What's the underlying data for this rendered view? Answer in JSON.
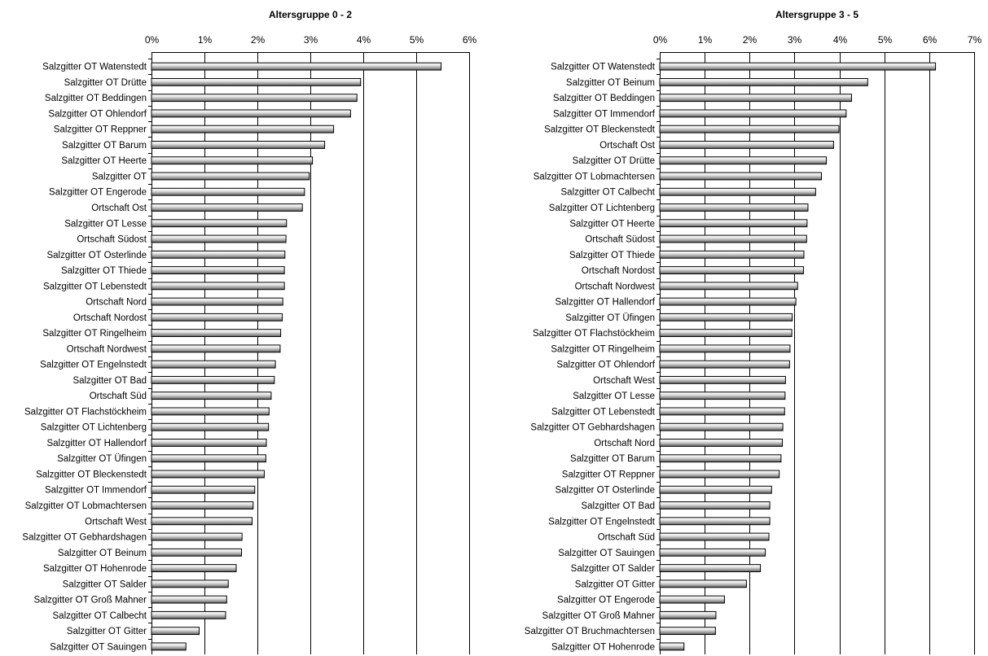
{
  "chart_data": [
    {
      "type": "bar",
      "orientation": "horizontal",
      "title": "Altersgruppe 0 - 2",
      "xlim": [
        0,
        6
      ],
      "x_ticks": [
        "0%",
        "1%",
        "2%",
        "3%",
        "4%",
        "5%",
        "6%"
      ],
      "grid": true,
      "categories": [
        "Salzgitter OT Watenstedt",
        "Salzgitter OT Drütte",
        "Salzgitter OT Beddingen",
        "Salzgitter OT Ohlendorf",
        "Salzgitter OT Reppner",
        "Salzgitter OT Barum",
        "Salzgitter OT Heerte",
        "Salzgitter OT",
        "Salzgitter OT Engerode",
        "Ortschaft Ost",
        "Salzgitter OT Lesse",
        "Ortschaft Südost",
        "Salzgitter OT Osterlinde",
        "Salzgitter OT Thiede",
        "Salzgitter OT Lebenstedt",
        "Ortschaft Nord",
        "Ortschaft Nordost",
        "Salzgitter OT Ringelheim",
        "Ortschaft Nordwest",
        "Salzgitter OT Engelnstedt",
        "Salzgitter OT Bad",
        "Ortschaft Süd",
        "Salzgitter OT Flachstöckheim",
        "Salzgitter OT Lichtenberg",
        "Salzgitter OT Hallendorf",
        "Salzgitter OT Üfingen",
        "Salzgitter OT Bleckenstedt",
        "Salzgitter OT Immendorf",
        "Salzgitter OT Lobmachtersen",
        "Ortschaft West",
        "Salzgitter OT Gebhardshagen",
        "Salzgitter OT Beinum",
        "Salzgitter OT Hohenrode",
        "Salzgitter OT Salder",
        "Salzgitter OT Groß Mahner",
        "Salzgitter OT Calbecht",
        "Salzgitter OT Gitter",
        "Salzgitter OT Sauingen"
      ],
      "values": [
        5.47,
        3.95,
        3.88,
        3.76,
        3.44,
        3.27,
        3.04,
        2.98,
        2.89,
        2.85,
        2.55,
        2.54,
        2.52,
        2.51,
        2.51,
        2.48,
        2.47,
        2.44,
        2.43,
        2.34,
        2.32,
        2.26,
        2.22,
        2.21,
        2.17,
        2.16,
        2.13,
        1.95,
        1.92,
        1.9,
        1.71,
        1.7,
        1.6,
        1.45,
        1.42,
        1.4,
        0.9,
        0.65
      ]
    },
    {
      "type": "bar",
      "orientation": "horizontal",
      "title": "Altersgruppe 3 - 5",
      "xlim": [
        0,
        7
      ],
      "x_ticks": [
        "0%",
        "1%",
        "2%",
        "3%",
        "4%",
        "5%",
        "6%",
        "7%"
      ],
      "grid": true,
      "categories": [
        "Salzgitter OT Watenstedt",
        "Salzgitter OT Beinum",
        "Salzgitter OT Beddingen",
        "Salzgitter OT Immendorf",
        "Salzgitter OT Bleckenstedt",
        "Ortschaft Ost",
        "Salzgitter OT Drütte",
        "Salzgitter OT Lobmachtersen",
        "Salzgitter OT Calbecht",
        "Salzgitter OT Lichtenberg",
        "Salzgitter OT Heerte",
        "Ortschaft Südost",
        "Salzgitter OT Thiede",
        "Ortschaft Nordost",
        "Ortschaft Nordwest",
        "Salzgitter OT Hallendorf",
        "Salzgitter OT Üfingen",
        "Salzgitter OT Flachstöckheim",
        "Salzgitter OT Ringelheim",
        "Salzgitter OT Ohlendorf",
        "Ortschaft West",
        "Salzgitter OT Lesse",
        "Salzgitter OT Lebenstedt",
        "Salzgitter OT Gebhardshagen",
        "Ortschaft Nord",
        "Salzgitter OT Barum",
        "Salzgitter OT Reppner",
        "Salzgitter OT Osterlinde",
        "Salzgitter OT Bad",
        "Salzgitter OT Engelnstedt",
        "Ortschaft Süd",
        "Salzgitter OT Sauingen",
        "Salzgitter OT Salder",
        "Salzgitter OT Gitter",
        "Salzgitter OT Engerode",
        "Salzgitter OT Groß Mahner",
        "Salzgitter OT Bruchmachtersen",
        "Salzgitter OT Hohenrode"
      ],
      "values": [
        6.14,
        4.63,
        4.27,
        4.15,
        3.99,
        3.87,
        3.71,
        3.6,
        3.47,
        3.3,
        3.28,
        3.27,
        3.21,
        3.2,
        3.07,
        3.03,
        2.95,
        2.94,
        2.9,
        2.89,
        2.8,
        2.79,
        2.78,
        2.74,
        2.73,
        2.7,
        2.66,
        2.49,
        2.45,
        2.45,
        2.43,
        2.35,
        2.24,
        1.93,
        1.44,
        1.25,
        1.24,
        0.54
      ]
    }
  ],
  "colors": {
    "bar_light": "#ffffff",
    "bar_mid": "#c8c8c8",
    "bar_dark": "#5a5a5a",
    "gridline": "#000000"
  }
}
